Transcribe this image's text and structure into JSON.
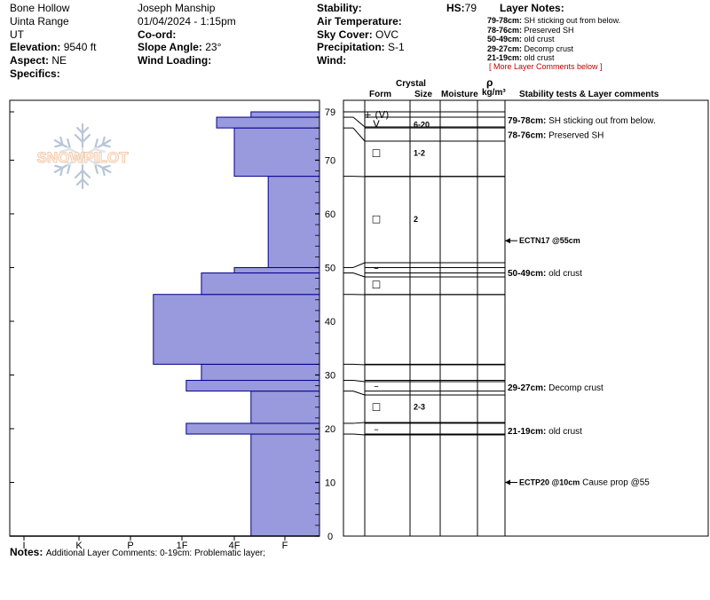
{
  "header": {
    "location": "Bone Hollow",
    "range": "Uinta Range",
    "state": "UT",
    "elevation_label": "Elevation:",
    "elevation": "9540 ft",
    "aspect_label": "Aspect:",
    "aspect": "NE",
    "specifics_label": "Specifics:",
    "observer": "Joseph Manship",
    "datetime": "01/04/2024 - 1:15pm",
    "coord_label": "Co-ord:",
    "slope_label": "Slope Angle:",
    "slope": "23°",
    "wind_loading_label": "Wind Loading:",
    "stability_label": "Stability:",
    "air_temp_label": "Air Temperature:",
    "sky_label": "Sky Cover:",
    "sky": "OVC",
    "precip_label": "Precipitation:",
    "precip": "S-1",
    "wind_label": "Wind:",
    "hs_label": "HS:",
    "hs": "79"
  },
  "layer_notes": {
    "title": "Layer Notes:",
    "items": [
      {
        "range": "79-78cm:",
        "text": "SH sticking out from below."
      },
      {
        "range": "78-76cm:",
        "text": "Preserved SH"
      },
      {
        "range": "50-49cm:",
        "text": "old crust"
      },
      {
        "range": "29-27cm:",
        "text": "Decomp crust"
      },
      {
        "range": "21-19cm:",
        "text": "old crust"
      }
    ],
    "more": "[ More Layer Comments below ]"
  },
  "table_headers": {
    "crystal": "Crystal",
    "form": "Form",
    "size": "Size",
    "moisture": "Moisture",
    "rho": "ρ",
    "density_unit": "kg/m³",
    "stability": "Stability tests & Layer comments"
  },
  "logo_text": "SNOWPILOT",
  "colors": {
    "hardness_fill": "#9999dd",
    "hardness_stroke": "#00008b",
    "note_red": "#c00000"
  },
  "chart_data": {
    "type": "bar",
    "orientation": "horizontal",
    "y_axis": {
      "min": 0,
      "max": 79,
      "ticks": [
        0,
        10,
        20,
        30,
        40,
        50,
        60,
        70,
        79
      ]
    },
    "x_axis": {
      "categories": [
        "I",
        "K",
        "P",
        "1F",
        "4F",
        "F"
      ]
    },
    "hardness_layers": [
      {
        "bottom": 0,
        "top": 19,
        "hardness": 0.67
      },
      {
        "bottom": 19,
        "top": 21,
        "hardness": 1.95
      },
      {
        "bottom": 21,
        "top": 27,
        "hardness": 0.67
      },
      {
        "bottom": 27,
        "top": 29,
        "hardness": 1.95
      },
      {
        "bottom": 29,
        "top": 32,
        "hardness": 1.65
      },
      {
        "bottom": 32,
        "top": 45,
        "hardness": 2.6
      },
      {
        "bottom": 45,
        "top": 49,
        "hardness": 1.65
      },
      {
        "bottom": 49,
        "top": 50,
        "hardness": 1.0
      },
      {
        "bottom": 50,
        "top": 67,
        "hardness": 0.33
      },
      {
        "bottom": 67,
        "top": 76,
        "hardness": 1.0
      },
      {
        "bottom": 76,
        "top": 78,
        "hardness": 1.35
      },
      {
        "bottom": 78,
        "top": 79,
        "hardness": 0.67
      }
    ],
    "layer_boundaries": [
      0,
      19,
      21,
      27,
      29,
      32,
      45,
      49,
      50,
      67,
      76,
      78,
      79
    ],
    "crystals": [
      {
        "height": 78.5,
        "form": "+ (V)",
        "size": ""
      },
      {
        "height": 76.8,
        "form": "V",
        "size": "6-20"
      },
      {
        "height": 71.5,
        "form": "□",
        "size": "1-2"
      },
      {
        "height": 59.2,
        "form": "□",
        "size": "2"
      },
      {
        "height": 50.0,
        "form": "–",
        "size": ""
      },
      {
        "height": 47.0,
        "form": "□",
        "size": ""
      },
      {
        "height": 28.0,
        "form": "–",
        "size": ""
      },
      {
        "height": 24.2,
        "form": "□",
        "size": "2-3"
      },
      {
        "height": 20.0,
        "form": "–",
        "size": ""
      }
    ],
    "comments": [
      {
        "height": 77.5,
        "range": "79-78cm:",
        "text": "SH sticking out from below."
      },
      {
        "height": 74.8,
        "range": "78-76cm:",
        "text": "Preserved SH"
      },
      {
        "height": 49.1,
        "range": "50-49cm:",
        "text": "old crust"
      },
      {
        "height": 27.8,
        "range": "29-27cm:",
        "text": "Decomp crust"
      },
      {
        "height": 19.7,
        "range": "21-19cm:",
        "text": "old crust"
      }
    ],
    "stability_tests": [
      {
        "height": 55,
        "code": "ECTN17 @55cm",
        "text": ""
      },
      {
        "height": 10,
        "code": "ECTP20 @10cm",
        "text": "Cause prop @55"
      }
    ]
  },
  "notes": {
    "label": "Notes:",
    "text": "Additional Layer Comments: 0-19cm: Problematic layer;"
  }
}
